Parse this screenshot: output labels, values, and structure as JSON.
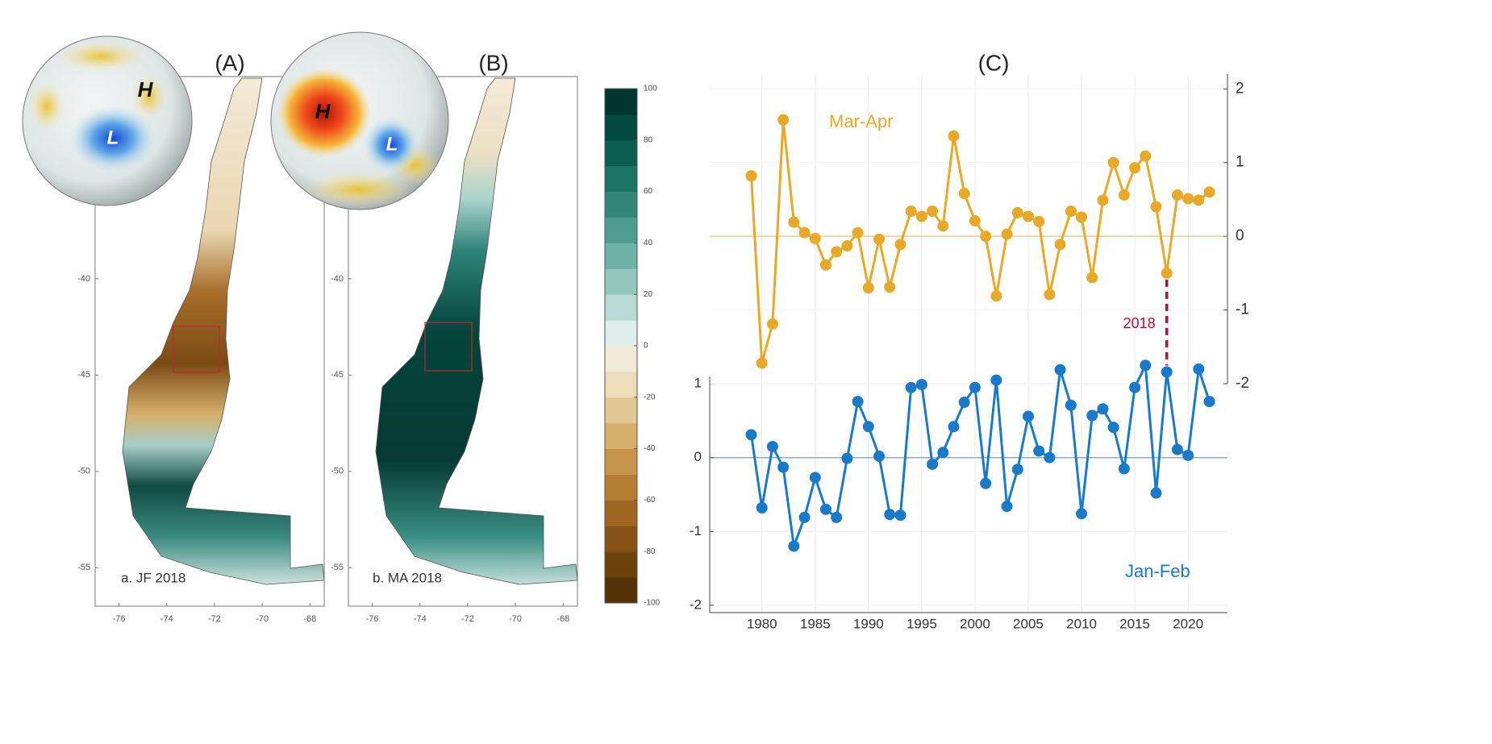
{
  "chart_data": [
    {
      "type": "map",
      "title": "(A)",
      "label": "a. JF 2018",
      "globe_labels": [
        "H",
        "L"
      ],
      "xlim": [
        -77,
        -67.4
      ],
      "ylim": [
        -57,
        -29.5
      ],
      "xticks": [
        -76,
        -74,
        -72,
        -70,
        -68
      ],
      "yticks": [
        -40,
        -45,
        -50,
        -55
      ]
    },
    {
      "type": "map",
      "title": "(B)",
      "label": "b. MA 2018",
      "globe_labels": [
        "H",
        "L"
      ],
      "xlim": [
        -77,
        -67.4
      ],
      "ylim": [
        -57,
        -29.5
      ],
      "xticks": [
        -76,
        -74,
        -72,
        -70,
        -68
      ],
      "yticks": [
        -40,
        -45,
        -50,
        -55
      ]
    },
    {
      "type": "colorbar",
      "ylim": [
        -100,
        100
      ],
      "yticks": [
        -100,
        -80,
        -60,
        -40,
        -20,
        0,
        20,
        40,
        60,
        80,
        100
      ],
      "colors": [
        "#553106",
        "#6d410c",
        "#875215",
        "#9e6621",
        "#b57d32",
        "#c7954a",
        "#d6b06b",
        "#e2c893",
        "#ecdcb9",
        "#f2ead9",
        "#e0eeeb",
        "#b8dcd5",
        "#93c7bd",
        "#6fb2a6",
        "#4e9c90",
        "#32877a",
        "#1b7366",
        "#0a5e52",
        "#024a40",
        "#01362e"
      ]
    },
    {
      "type": "line",
      "title": "(C)",
      "x": [
        1979,
        1980,
        1981,
        1982,
        1983,
        1984,
        1985,
        1986,
        1987,
        1988,
        1989,
        1990,
        1991,
        1992,
        1993,
        1994,
        1995,
        1996,
        1997,
        1998,
        1999,
        2000,
        2001,
        2002,
        2003,
        2004,
        2005,
        2006,
        2007,
        2008,
        2009,
        2010,
        2011,
        2012,
        2013,
        2014,
        2015,
        2016,
        2017,
        2018,
        2019,
        2020,
        2021,
        2022
      ],
      "xlim": [
        1975.1,
        2023.7
      ],
      "xticks": [
        1980,
        1985,
        1990,
        1995,
        2000,
        2005,
        2010,
        2015,
        2020
      ],
      "ylim": [
        -2.1,
        1.1
      ],
      "yticks": [
        -2,
        -1,
        0,
        1
      ],
      "y2lim": [
        -2,
        2.2
      ],
      "y2ticks": [
        -2,
        -1,
        0,
        1,
        2
      ],
      "grid": true,
      "annotation": 2018,
      "series": [
        {
          "name": "Mar-Apr",
          "color": "#e8a928",
          "axis": "y2",
          "values": [
            0.82,
            -1.72,
            -1.19,
            1.58,
            0.19,
            0.05,
            -0.03,
            -0.39,
            -0.21,
            -0.13,
            0.05,
            -0.7,
            -0.04,
            -0.69,
            -0.11,
            0.34,
            0.27,
            0.34,
            0.14,
            1.36,
            0.58,
            0.21,
            0.0,
            -0.81,
            0.03,
            0.32,
            0.27,
            0.2,
            -0.79,
            -0.11,
            0.34,
            0.26,
            -0.56,
            0.49,
            1.0,
            0.56,
            0.93,
            1.09,
            0.4,
            -0.5,
            0.56,
            0.51,
            0.49,
            0.6
          ]
        },
        {
          "name": "Jan-Feb",
          "color": "#1a7ac9",
          "values": [
            0.31,
            -0.68,
            0.15,
            -0.13,
            -1.2,
            -0.81,
            -0.27,
            -0.7,
            -0.81,
            -0.01,
            0.76,
            0.42,
            0.02,
            -0.77,
            -0.78,
            0.95,
            0.99,
            -0.09,
            0.07,
            0.42,
            0.75,
            0.95,
            -0.35,
            1.05,
            -0.66,
            -0.16,
            0.56,
            0.09,
            0.0,
            1.19,
            0.71,
            -0.76,
            0.57,
            0.66,
            0.41,
            -0.15,
            0.95,
            1.25,
            -0.48,
            1.16,
            0.11,
            0.03,
            1.2,
            0.76
          ]
        }
      ]
    }
  ]
}
